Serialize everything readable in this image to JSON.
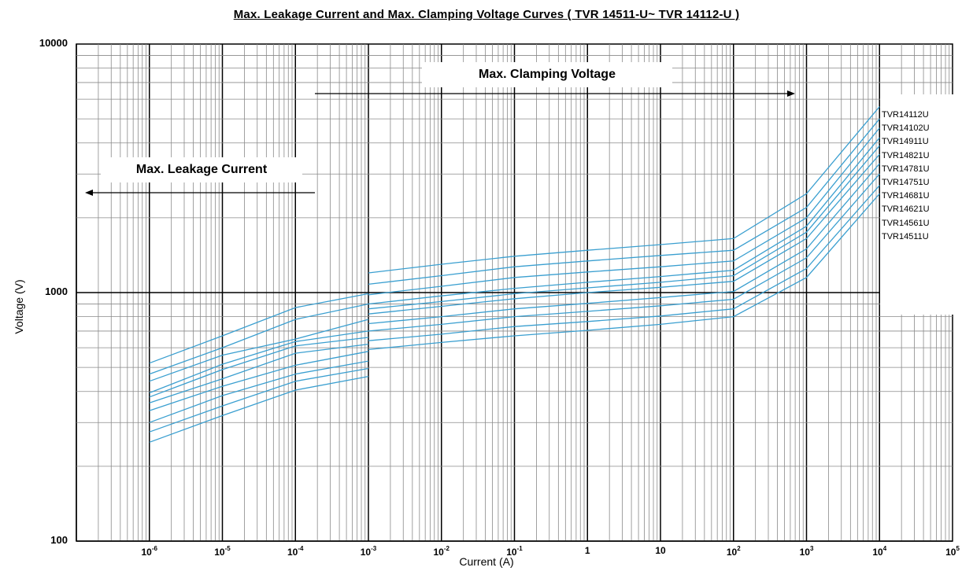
{
  "chart_data": {
    "type": "line",
    "title": "Max. Leakage Current and Max. Clamping  Voltage Curves   ( TVR 14511-U~ TVR 14112-U )",
    "xlabel": "Current (A)",
    "ylabel": "Voltage  (V)",
    "xscale": "log",
    "yscale": "log",
    "xlim": [
      1e-07,
      100000
    ],
    "ylim": [
      100,
      10000
    ],
    "grid": true,
    "legend_position": "right",
    "x_ticks": [
      {
        "base": "10",
        "exp": "-6"
      },
      {
        "base": "10",
        "exp": "-5"
      },
      {
        "base": "10",
        "exp": "-4"
      },
      {
        "base": "10",
        "exp": "-3"
      },
      {
        "base": "10",
        "exp": "-2"
      },
      {
        "base": "10",
        "exp": "-1"
      },
      {
        "base": "1",
        "exp": ""
      },
      {
        "base": "10",
        "exp": ""
      },
      {
        "base": "10",
        "exp": "2"
      },
      {
        "base": "10",
        "exp": "3"
      },
      {
        "base": "10",
        "exp": "4"
      },
      {
        "base": "10",
        "exp": "5"
      }
    ],
    "y_ticks": [
      "10000",
      "1000",
      "100"
    ],
    "annotations": [
      "Max.  Clamping  Voltage",
      "Max. Leakage Current"
    ],
    "series_color": "#3a9fd0",
    "leakage_series": [
      {
        "x": [
          1e-06,
          1e-05,
          0.0001,
          0.001
        ],
        "y": [
          520,
          670,
          870,
          990
        ]
      },
      {
        "x": [
          1e-06,
          1e-05,
          0.0001,
          0.001
        ],
        "y": [
          470,
          600,
          780,
          900
        ]
      },
      {
        "x": [
          1e-06,
          1e-05,
          0.0001,
          0.001
        ],
        "y": [
          440,
          560,
          650,
          780
        ]
      },
      {
        "x": [
          1e-06,
          1e-05,
          0.0001,
          0.001
        ],
        "y": [
          395,
          515,
          635,
          700
        ]
      },
      {
        "x": [
          1e-06,
          1e-05,
          0.0001,
          0.001
        ],
        "y": [
          380,
          490,
          610,
          660
        ]
      },
      {
        "x": [
          1e-06,
          1e-05,
          0.0001,
          0.001
        ],
        "y": [
          360,
          450,
          570,
          620
        ]
      },
      {
        "x": [
          1e-06,
          1e-05,
          0.0001,
          0.001
        ],
        "y": [
          335,
          420,
          510,
          580
        ]
      },
      {
        "x": [
          1e-06,
          1e-05,
          0.0001,
          0.001
        ],
        "y": [
          300,
          385,
          470,
          530
        ]
      },
      {
        "x": [
          1e-06,
          1e-05,
          0.0001,
          0.001
        ],
        "y": [
          275,
          350,
          440,
          495
        ]
      },
      {
        "x": [
          1e-06,
          1e-05,
          0.0001,
          0.001
        ],
        "y": [
          250,
          320,
          405,
          460
        ]
      }
    ],
    "series": [
      {
        "name": "TVR14112U",
        "x": [
          0.001,
          0.01,
          0.1,
          1,
          10,
          100,
          1000,
          10000
        ],
        "y": [
          1200,
          1300,
          1400,
          1480,
          1560,
          1650,
          2500,
          5600
        ]
      },
      {
        "name": "TVR14102U",
        "x": [
          0.001,
          0.01,
          0.1,
          1,
          10,
          100,
          1000,
          10000
        ],
        "y": [
          1080,
          1170,
          1270,
          1340,
          1410,
          1480,
          2200,
          5000
        ]
      },
      {
        "name": "TVR14911U",
        "x": [
          0.001,
          0.01,
          0.1,
          1,
          10,
          100,
          1000,
          10000
        ],
        "y": [
          980,
          1060,
          1150,
          1210,
          1270,
          1340,
          2000,
          4600
        ]
      },
      {
        "name": "TVR14821U",
        "x": [
          0.001,
          0.01,
          0.1,
          1,
          10,
          100,
          1000,
          10000
        ],
        "y": [
          900,
          970,
          1040,
          1100,
          1160,
          1230,
          1850,
          4200
        ]
      },
      {
        "name": "TVR14781U",
        "x": [
          0.001,
          0.01,
          0.1,
          1,
          10,
          100,
          1000,
          10000
        ],
        "y": [
          860,
          920,
          990,
          1045,
          1100,
          1170,
          1750,
          3900
        ]
      },
      {
        "name": "TVR14751U",
        "x": [
          0.001,
          0.01,
          0.1,
          1,
          10,
          100,
          1000,
          10000
        ],
        "y": [
          820,
          880,
          945,
          1000,
          1050,
          1110,
          1650,
          3600
        ]
      },
      {
        "name": "TVR14681U",
        "x": [
          0.001,
          0.01,
          0.1,
          1,
          10,
          100,
          1000,
          10000
        ],
        "y": [
          750,
          800,
          860,
          905,
          955,
          1010,
          1500,
          3300
        ]
      },
      {
        "name": "TVR14621U",
        "x": [
          0.001,
          0.01,
          0.1,
          1,
          10,
          100,
          1000,
          10000
        ],
        "y": [
          700,
          745,
          800,
          840,
          885,
          940,
          1380,
          3000
        ]
      },
      {
        "name": "TVR14561U",
        "x": [
          0.001,
          0.01,
          0.1,
          1,
          10,
          100,
          1000,
          10000
        ],
        "y": [
          640,
          680,
          730,
          765,
          805,
          860,
          1250,
          2700
        ]
      },
      {
        "name": "TVR14511U",
        "x": [
          0.001,
          0.01,
          0.1,
          1,
          10,
          100,
          1000,
          10000
        ],
        "y": [
          590,
          630,
          670,
          705,
          745,
          800,
          1150,
          2500
        ]
      }
    ]
  }
}
